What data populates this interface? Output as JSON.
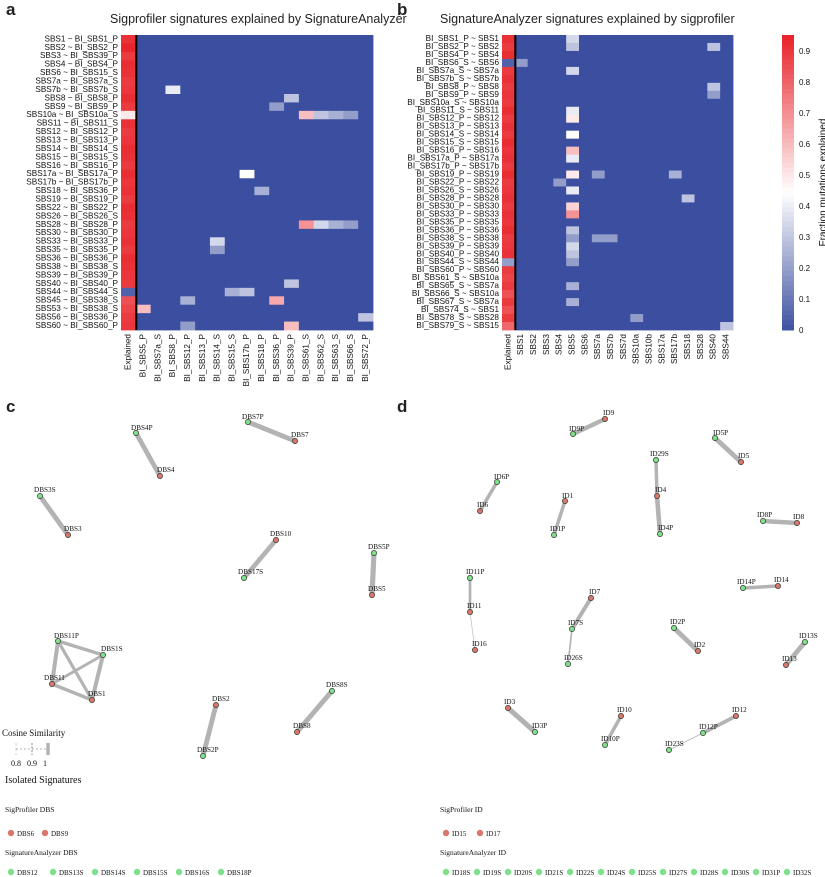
{
  "panels": {
    "a": {
      "letter": "a",
      "title": "Sigprofiler signatures explained by SignatureAnalyzer",
      "rows": [
        "SBS1 ~ BI_SBS1_P",
        "SBS2 ~ BI_SBS2_P",
        "SBS3 ~ BI_SBS39_P",
        "SBS4 ~ BI_SBS4_P",
        "SBS6 ~ BI_SBS15_S",
        "SBS7a ~ BI_SBS7a_S",
        "SBS7b ~ BI_SBS7b_S",
        "SBS8 ~ BI_SBS8_P",
        "SBS9 ~ BI_SBS9_P",
        "SBS10a ~ BI_SBS10a_S",
        "SBS11 ~ BI_SBS11_S",
        "SBS12 ~ BI_SBS12_P",
        "SBS13 ~ BI_SBS13_P",
        "SBS14 ~ BI_SBS14_S",
        "SBS15 ~ BI_SBS15_S",
        "SBS16 ~ BI_SBS16_P",
        "SBS17a ~ BI_SBS17a_P",
        "SBS17b ~ BI_SBS17b_P",
        "SBS18 ~ BI_SBS36_P",
        "SBS19 ~ BI_SBS19_P",
        "SBS22 ~ BI_SBS22_P",
        "SBS26 ~ BI_SBS26_S",
        "SBS28 ~ BI_SBS28_P",
        "SBS30 ~ BI_SBS30_P",
        "SBS33 ~ BI_SBS33_P",
        "SBS35 ~ BI_SBS35_P",
        "SBS36 ~ BI_SBS36_P",
        "SBS38 ~ BI_SBS38_S",
        "SBS39 ~ BI_SBS39_P",
        "SBS40 ~ BI_SBS40_P",
        "SBS44 ~ BI_SBS44_S",
        "SBS45 ~ BI_SBS38_S",
        "SBS53 ~ BI_SBS38_S",
        "SBS56 ~ BI_SBS36_P",
        "SBS60 ~ BI_SBS60_P"
      ],
      "cols": [
        "Explained",
        "BI_SBS5_P",
        "BI_SBS7a_S",
        "BI_SBS8_P",
        "BI_SBS12_P",
        "BI_SBS13_P",
        "BI_SBS14_S",
        "BI_SBS15_S",
        "BI_SBS17b_P",
        "BI_SBS18_P",
        "BI_SBS36_P",
        "BI_SBS39_P",
        "BI_SBS61_S",
        "BI_SBS62_S",
        "BI_SBS63_S",
        "BI_SBS66_S",
        "BI_SBS72_P"
      ],
      "highlights": [
        [
          0,
          0,
          0.92
        ],
        [
          1,
          0,
          0.95
        ],
        [
          2,
          0,
          0.9
        ],
        [
          3,
          0,
          0.93
        ],
        [
          4,
          0,
          0.92
        ],
        [
          5,
          0,
          0.9
        ],
        [
          6,
          0,
          0.91
        ],
        [
          7,
          0,
          0.93
        ],
        [
          8,
          0,
          0.9
        ],
        [
          9,
          0,
          0.5
        ],
        [
          10,
          0,
          0.92
        ],
        [
          11,
          0,
          0.9
        ],
        [
          12,
          0,
          0.91
        ],
        [
          13,
          0,
          0.93
        ],
        [
          14,
          0,
          0.92
        ],
        [
          15,
          0,
          0.9
        ],
        [
          16,
          0,
          0.93
        ],
        [
          17,
          0,
          0.91
        ],
        [
          18,
          0,
          0.92
        ],
        [
          19,
          0,
          0.9
        ],
        [
          20,
          0,
          0.93
        ],
        [
          21,
          0,
          0.92
        ],
        [
          22,
          0,
          0.9
        ],
        [
          23,
          0,
          0.91
        ],
        [
          24,
          0,
          0.92
        ],
        [
          25,
          0,
          0.9
        ],
        [
          26,
          0,
          0.93
        ],
        [
          27,
          0,
          0.92
        ],
        [
          28,
          0,
          0.91
        ],
        [
          29,
          0,
          0.9
        ],
        [
          30,
          0,
          0.05
        ],
        [
          31,
          0,
          0.85
        ],
        [
          32,
          0,
          0.88
        ],
        [
          33,
          0,
          0.9
        ],
        [
          34,
          0,
          0.91
        ],
        [
          1,
          6,
          0.0
        ],
        [
          6,
          3,
          0.4
        ],
        [
          9,
          12,
          0.6
        ],
        [
          9,
          13,
          0.3
        ],
        [
          9,
          14,
          0.25
        ],
        [
          9,
          15,
          0.2
        ],
        [
          16,
          8,
          0.45
        ],
        [
          18,
          9,
          0.25
        ],
        [
          22,
          12,
          0.7
        ],
        [
          22,
          13,
          0.35
        ],
        [
          22,
          14,
          0.25
        ],
        [
          22,
          15,
          0.2
        ],
        [
          24,
          6,
          0.35
        ],
        [
          25,
          6,
          0.2
        ],
        [
          29,
          11,
          0.3
        ],
        [
          30,
          8,
          0.3
        ],
        [
          30,
          7,
          0.25
        ],
        [
          31,
          10,
          0.65
        ],
        [
          32,
          1,
          0.6
        ],
        [
          33,
          16,
          0.3
        ],
        [
          34,
          11,
          0.6
        ],
        [
          34,
          4,
          0.2
        ],
        [
          7,
          11,
          0.3
        ],
        [
          8,
          10,
          0.2
        ],
        [
          31,
          4,
          0.25
        ]
      ]
    },
    "b": {
      "letter": "b",
      "title": "SignatureAnalyzer signatures explained by sigprofiler",
      "rows": [
        "BI_SBS1_P ~ SBS1",
        "BI_SBS2_P ~ SBS2",
        "BI_SBS4_P ~ SBS4",
        "BI_SBS6_S ~ SBS6",
        "BI_SBS7a_S ~ SBS7a",
        "BI_SBS7b_S ~ SBS7b",
        "BI_SBS8_P ~ SBS8",
        "BI_SBS9_P ~ SBS9",
        "BI_SBS10a_S ~ SBS10a",
        "BI_SBS11_S ~ SBS11",
        "BI_SBS12_P ~ SBS12",
        "BI_SBS13_P ~ SBS13",
        "BI_SBS14_S ~ SBS14",
        "BI_SBS15_S ~ SBS15",
        "BI_SBS16_P ~ SBS16",
        "BI_SBS17a_P ~ SBS17a",
        "BI_SBS17b_P ~ SBS17b",
        "BI_SBS19_P ~ SBS19",
        "BI_SBS22_P ~ SBS22",
        "BI_SBS26_S ~ SBS26",
        "BI_SBS28_P ~ SBS28",
        "BI_SBS30_P ~ SBS30",
        "BI_SBS33_P ~ SBS33",
        "BI_SBS35_P ~ SBS35",
        "BI_SBS36_P ~ SBS36",
        "BI_SBS38_S ~ SBS38",
        "BI_SBS39_P ~ SBS39",
        "BI_SBS40_P ~ SBS40",
        "BI_SBS44_S ~ SBS44",
        "BI_SBS60_P ~ SBS60",
        "BI_SBS61_S ~ SBS10a",
        "BI_SBS65_S ~ SBS7a",
        "BI_SBS66_S ~ SBS10a",
        "BI_SBS67_S ~ SBS7a",
        "BI_SBS74_S ~ SBS1",
        "BI_SBS78_S ~ SBS28",
        "BI_SBS79_S ~ SBS15"
      ],
      "cols": [
        "Explained",
        "SBS1",
        "SBS2",
        "SBS3",
        "SBS4",
        "SBS5",
        "SBS6",
        "SBS7a",
        "SBS7b",
        "SBS7d",
        "SBS10a",
        "SBS10b",
        "SBS17a",
        "SBS17b",
        "SBS18",
        "SBS28",
        "SBS40",
        "SBS44"
      ],
      "highlights": [
        [
          0,
          0,
          0.92
        ],
        [
          1,
          0,
          0.9
        ],
        [
          2,
          0,
          0.93
        ],
        [
          3,
          0,
          0.05
        ],
        [
          4,
          0,
          0.9
        ],
        [
          5,
          0,
          0.92
        ],
        [
          6,
          0,
          0.9
        ],
        [
          7,
          0,
          0.91
        ],
        [
          8,
          0,
          0.9
        ],
        [
          9,
          0,
          0.93
        ],
        [
          10,
          0,
          0.9
        ],
        [
          11,
          0,
          0.92
        ],
        [
          12,
          0,
          0.9
        ],
        [
          13,
          0,
          0.93
        ],
        [
          14,
          0,
          0.91
        ],
        [
          15,
          0,
          0.92
        ],
        [
          16,
          0,
          0.9
        ],
        [
          17,
          0,
          0.93
        ],
        [
          18,
          0,
          0.9
        ],
        [
          19,
          0,
          0.91
        ],
        [
          20,
          0,
          0.92
        ],
        [
          21,
          0,
          0.9
        ],
        [
          22,
          0,
          0.92
        ],
        [
          23,
          0,
          0.91
        ],
        [
          24,
          0,
          0.93
        ],
        [
          25,
          0,
          0.9
        ],
        [
          26,
          0,
          0.91
        ],
        [
          27,
          0,
          0.92
        ],
        [
          28,
          0,
          0.2
        ],
        [
          29,
          0,
          0.9
        ],
        [
          30,
          0,
          0.88
        ],
        [
          31,
          0,
          0.9
        ],
        [
          32,
          0,
          0.85
        ],
        [
          33,
          0,
          0.9
        ],
        [
          34,
          0,
          0.85
        ],
        [
          35,
          0,
          0.9
        ],
        [
          36,
          0,
          0.8
        ],
        [
          0,
          5,
          0.35
        ],
        [
          1,
          5,
          0.3
        ],
        [
          3,
          1,
          0.2
        ],
        [
          3,
          5,
          0.0
        ],
        [
          3,
          17,
          0.0
        ],
        [
          4,
          5,
          0.35
        ],
        [
          6,
          5,
          0.0
        ],
        [
          6,
          16,
          0.3
        ],
        [
          7,
          16,
          0.2
        ],
        [
          9,
          5,
          0.4
        ],
        [
          10,
          5,
          0.5
        ],
        [
          11,
          2,
          0.0
        ],
        [
          12,
          5,
          0.45
        ],
        [
          13,
          5,
          0.0
        ],
        [
          14,
          5,
          0.6
        ],
        [
          15,
          5,
          0.4
        ],
        [
          17,
          5,
          0.5
        ],
        [
          17,
          7,
          0.2
        ],
        [
          17,
          13,
          0.25
        ],
        [
          18,
          4,
          0.2
        ],
        [
          19,
          5,
          0.4
        ],
        [
          20,
          14,
          0.3
        ],
        [
          21,
          5,
          0.55
        ],
        [
          22,
          5,
          0.7
        ],
        [
          23,
          5,
          0.0
        ],
        [
          24,
          5,
          0.3
        ],
        [
          25,
          5,
          0.2
        ],
        [
          25,
          7,
          0.2
        ],
        [
          25,
          8,
          0.2
        ],
        [
          26,
          5,
          0.35
        ],
        [
          27,
          5,
          0.3
        ],
        [
          28,
          5,
          0.2
        ],
        [
          30,
          15,
          0.0
        ],
        [
          31,
          5,
          0.25
        ],
        [
          33,
          5,
          0.25
        ],
        [
          35,
          10,
          0.2
        ],
        [
          36,
          17,
          0.3
        ],
        [
          1,
          16,
          0.3
        ]
      ]
    },
    "colorbar": {
      "label": "Fraction mutations explained",
      "ticks": [
        "0",
        "0.1",
        "0.2",
        "0.3",
        "0.4",
        "0.5",
        "0.6",
        "0.7",
        "0.8",
        "0.9"
      ]
    },
    "c": {
      "letter": "c",
      "nodes": [
        {
          "id": "DBS4P",
          "t": "S"
        },
        {
          "id": "DBS4",
          "t": "P"
        },
        {
          "id": "DBS7P",
          "t": "S"
        },
        {
          "id": "DBS7",
          "t": "P"
        },
        {
          "id": "DBS3S",
          "t": "S"
        },
        {
          "id": "DBS3",
          "t": "P"
        },
        {
          "id": "DBS10",
          "t": "P"
        },
        {
          "id": "DBS17S",
          "t": "S"
        },
        {
          "id": "DBS5P",
          "t": "S"
        },
        {
          "id": "DBS5",
          "t": "P"
        },
        {
          "id": "DBS11P",
          "t": "S"
        },
        {
          "id": "DBS1S",
          "t": "S"
        },
        {
          "id": "DBS11",
          "t": "P"
        },
        {
          "id": "DBS1",
          "t": "P"
        },
        {
          "id": "DBS2",
          "t": "P"
        },
        {
          "id": "DBS2P",
          "t": "S"
        },
        {
          "id": "DBS8S",
          "t": "S"
        },
        {
          "id": "DBS8",
          "t": "P"
        }
      ],
      "edges": [
        [
          "DBS4P",
          "DBS4",
          0.98
        ],
        [
          "DBS7P",
          "DBS7",
          0.98
        ],
        [
          "DBS3S",
          "DBS3",
          0.98
        ],
        [
          "DBS10",
          "DBS17S",
          0.97
        ],
        [
          "DBS5P",
          "DBS5",
          0.99
        ],
        [
          "DBS11P",
          "DBS1S",
          0.93
        ],
        [
          "DBS11P",
          "DBS11",
          0.95
        ],
        [
          "DBS11P",
          "DBS1",
          0.92
        ],
        [
          "DBS1S",
          "DBS11",
          0.91
        ],
        [
          "DBS1S",
          "DBS1",
          0.95
        ],
        [
          "DBS11",
          "DBS1",
          0.93
        ],
        [
          "DBS2",
          "DBS2P",
          0.98
        ],
        [
          "DBS8S",
          "DBS8",
          0.98
        ]
      ],
      "legend": {
        "title": "Cosine Similarity",
        "ticks": [
          "0.8",
          "0.9",
          "1"
        ]
      },
      "isolated_title": "Isolated Signatures",
      "sp_label": "SigProfiler DBS",
      "sp_items": [
        "DBS6",
        "DBS9"
      ],
      "sa_label": "SignatureAnalyzer DBS",
      "sa_items": [
        "DBS12",
        "DBS13S",
        "DBS14S",
        "DBS15S",
        "DBS16S",
        "DBS18P"
      ]
    },
    "d": {
      "letter": "d",
      "nodes": [
        {
          "id": "ID9P",
          "t": "S"
        },
        {
          "id": "ID9",
          "t": "P"
        },
        {
          "id": "ID5P",
          "t": "S"
        },
        {
          "id": "ID5",
          "t": "P"
        },
        {
          "id": "ID29S",
          "t": "S"
        },
        {
          "id": "ID4",
          "t": "P"
        },
        {
          "id": "ID4P",
          "t": "S"
        },
        {
          "id": "ID6P",
          "t": "S"
        },
        {
          "id": "ID6",
          "t": "P"
        },
        {
          "id": "ID1",
          "t": "P"
        },
        {
          "id": "ID1P",
          "t": "S"
        },
        {
          "id": "ID8P",
          "t": "S"
        },
        {
          "id": "ID8",
          "t": "P"
        },
        {
          "id": "ID11P",
          "t": "S"
        },
        {
          "id": "ID11",
          "t": "P"
        },
        {
          "id": "ID16",
          "t": "P"
        },
        {
          "id": "ID7",
          "t": "P"
        },
        {
          "id": "ID7S",
          "t": "S"
        },
        {
          "id": "ID26S",
          "t": "S"
        },
        {
          "id": "ID14P",
          "t": "S"
        },
        {
          "id": "ID14",
          "t": "P"
        },
        {
          "id": "ID2P",
          "t": "S"
        },
        {
          "id": "ID2",
          "t": "P"
        },
        {
          "id": "ID13S",
          "t": "S"
        },
        {
          "id": "ID13",
          "t": "P"
        },
        {
          "id": "ID3",
          "t": "P"
        },
        {
          "id": "ID3P",
          "t": "S"
        },
        {
          "id": "ID10",
          "t": "P"
        },
        {
          "id": "ID10P",
          "t": "S"
        },
        {
          "id": "ID12",
          "t": "P"
        },
        {
          "id": "ID12P",
          "t": "S"
        },
        {
          "id": "ID23S",
          "t": "S"
        }
      ],
      "edges": [
        [
          "ID9P",
          "ID9",
          0.96
        ],
        [
          "ID5P",
          "ID5",
          0.98
        ],
        [
          "ID29S",
          "ID4",
          0.93
        ],
        [
          "ID4",
          "ID4P",
          0.97
        ],
        [
          "ID6P",
          "ID6",
          0.93
        ],
        [
          "ID1",
          "ID1P",
          0.93
        ],
        [
          "ID8P",
          "ID8",
          0.97
        ],
        [
          "ID11P",
          "ID11",
          0.9
        ],
        [
          "ID11",
          "ID16",
          0.82
        ],
        [
          "ID7",
          "ID7S",
          0.95
        ],
        [
          "ID7S",
          "ID26S",
          0.86
        ],
        [
          "ID14P",
          "ID14",
          0.93
        ],
        [
          "ID2P",
          "ID2",
          0.98
        ],
        [
          "ID13S",
          "ID13",
          0.98
        ],
        [
          "ID3",
          "ID3P",
          0.99
        ],
        [
          "ID10",
          "ID10P",
          0.93
        ],
        [
          "ID12",
          "ID12P",
          0.94
        ],
        [
          "ID12P",
          "ID23S",
          0.83
        ]
      ],
      "isolated_title": "",
      "sp_label": "SigProfiler ID",
      "sp_items": [
        "ID15",
        "ID17"
      ],
      "sa_label": "SignatureAnalyzer ID",
      "sa_items": [
        "ID18S",
        "ID19S",
        "ID20S",
        "ID21S",
        "ID22S",
        "ID24S",
        "ID25S",
        "ID27S",
        "ID28S",
        "ID30S",
        "ID31P",
        "ID32S"
      ]
    }
  },
  "colors": {
    "low": "#3b4ea0",
    "mid": "#ffffff",
    "high": "#e8252b",
    "profiler_node": "#d9776a",
    "analyzer_node": "#7fe08a",
    "edge": "#b3b3b3"
  }
}
